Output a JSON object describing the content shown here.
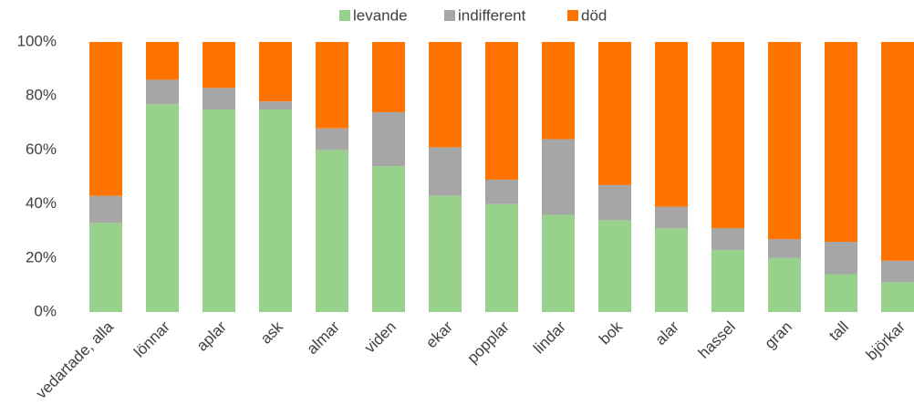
{
  "chart_data": {
    "type": "stacked_bar_percent",
    "categories": [
      "vedartade, alla",
      "lönnar",
      "aplar",
      "ask",
      "almar",
      "viden",
      "ekar",
      "popplar",
      "lindar",
      "bok",
      "alar",
      "hassel",
      "gran",
      "tall",
      "björkar"
    ],
    "series": [
      {
        "name": "levande",
        "color": "#97d18b",
        "values": [
          33,
          77,
          75,
          75,
          60,
          54,
          43,
          40,
          36,
          34,
          31,
          23,
          20,
          14,
          11
        ]
      },
      {
        "name": "indifferent",
        "color": "#a6a6a6",
        "values": [
          10,
          9,
          8,
          3,
          8,
          20,
          18,
          9,
          28,
          13,
          8,
          8,
          7,
          12,
          8
        ]
      },
      {
        "name": "död",
        "color": "#ff7300",
        "values": [
          57,
          14,
          17,
          22,
          32,
          26,
          39,
          51,
          36,
          53,
          61,
          69,
          73,
          74,
          81
        ]
      }
    ],
    "ylim": [
      0,
      100
    ],
    "yticks": [
      {
        "value": 0,
        "label": "0%"
      },
      {
        "value": 20,
        "label": "20%"
      },
      {
        "value": 40,
        "label": "40%"
      },
      {
        "value": 60,
        "label": "60%"
      },
      {
        "value": 80,
        "label": "80%"
      },
      {
        "value": 100,
        "label": "100%"
      }
    ],
    "grid": false,
    "legend": "top"
  }
}
